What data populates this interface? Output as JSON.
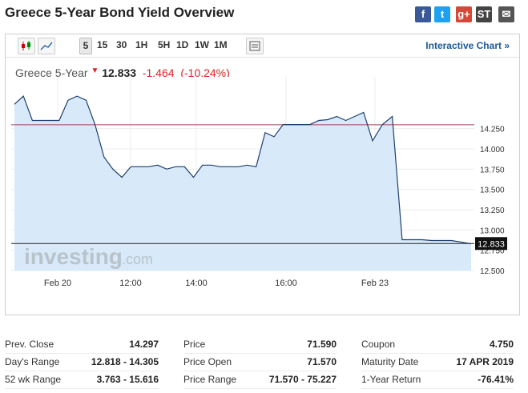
{
  "page_title": "Greece 5-Year Bond Yield Overview",
  "share_icons": [
    {
      "name": "facebook-icon",
      "glyph": "f",
      "color": "#3b5998"
    },
    {
      "name": "twitter-icon",
      "glyph": "t",
      "color": "#1da1f2"
    },
    {
      "name": "googleplus-icon",
      "glyph": "g+",
      "color": "#d34836"
    },
    {
      "name": "stocktwits-icon",
      "glyph": "ST",
      "color": "#444444"
    },
    {
      "name": "email-icon",
      "glyph": "✉",
      "color": "#555555"
    }
  ],
  "toolbar": {
    "timeframes": [
      "5",
      "15",
      "30",
      "1H",
      "5H",
      "1D",
      "1W",
      "1M"
    ],
    "selected": "5",
    "interactive_label": "Interactive Chart »"
  },
  "quote": {
    "name": "Greece 5-Year",
    "price": "12.833",
    "change": "-1.464",
    "change_pct": "(-10.24%)"
  },
  "chart_data": {
    "type": "area",
    "x": [
      "Feb 20 start",
      "",
      "",
      "",
      "",
      "",
      "",
      "",
      "",
      "",
      "",
      "",
      "",
      "12:00",
      "",
      "",
      "",
      "",
      "",
      "",
      "",
      "14:00",
      "",
      "",
      "",
      "",
      "",
      "",
      "",
      "16:00",
      "",
      "",
      "",
      "",
      "",
      "",
      "",
      "",
      "",
      "",
      "Feb 23",
      "",
      "",
      "",
      "",
      "",
      "",
      "",
      "",
      "",
      ""
    ],
    "values": [
      14.55,
      14.65,
      14.35,
      14.35,
      14.35,
      14.35,
      14.6,
      14.65,
      14.6,
      14.3,
      13.9,
      13.75,
      13.65,
      13.78,
      13.78,
      13.78,
      13.8,
      13.75,
      13.78,
      13.78,
      13.65,
      13.8,
      13.8,
      13.78,
      13.78,
      13.78,
      13.8,
      13.78,
      14.2,
      14.15,
      14.3,
      14.3,
      14.3,
      14.3,
      14.35,
      14.36,
      14.4,
      14.35,
      14.4,
      14.45,
      14.1,
      14.3,
      14.4,
      12.88,
      12.88,
      12.88,
      12.87,
      12.87,
      12.87,
      12.85,
      12.83
    ],
    "reference_line": 14.297,
    "last_price": 12.833,
    "ylim": [
      12.5,
      14.75
    ],
    "y_ticks": [
      "14.250",
      "14.000",
      "13.750",
      "13.500",
      "13.250",
      "13.000",
      "12.750",
      "12.500"
    ],
    "x_ticks": [
      "Feb 20",
      "12:00",
      "14:00",
      "16:00",
      "Feb 23"
    ],
    "last_label": "12.833",
    "watermark": "investing",
    "watermark_suffix": ".com",
    "line_color": "#1f3f6f",
    "fill_color": "#d8eaf9",
    "ref_color": "#a0425c"
  },
  "stats": {
    "col1": [
      {
        "label": "Prev. Close",
        "value": "14.297"
      },
      {
        "label": "Day's Range",
        "value": "12.818 - 14.305"
      },
      {
        "label": "52 wk Range",
        "value": "3.763 - 15.616"
      }
    ],
    "col2": [
      {
        "label": "Price",
        "value": "71.590"
      },
      {
        "label": "Price Open",
        "value": "71.570"
      },
      {
        "label": "Price Range",
        "value": "71.570 - 75.227"
      }
    ],
    "col3": [
      {
        "label": "Coupon",
        "value": "4.750"
      },
      {
        "label": "Maturity Date",
        "value": "17 APR 2019"
      },
      {
        "label": "1-Year Return",
        "value": "-76.41%"
      }
    ]
  }
}
